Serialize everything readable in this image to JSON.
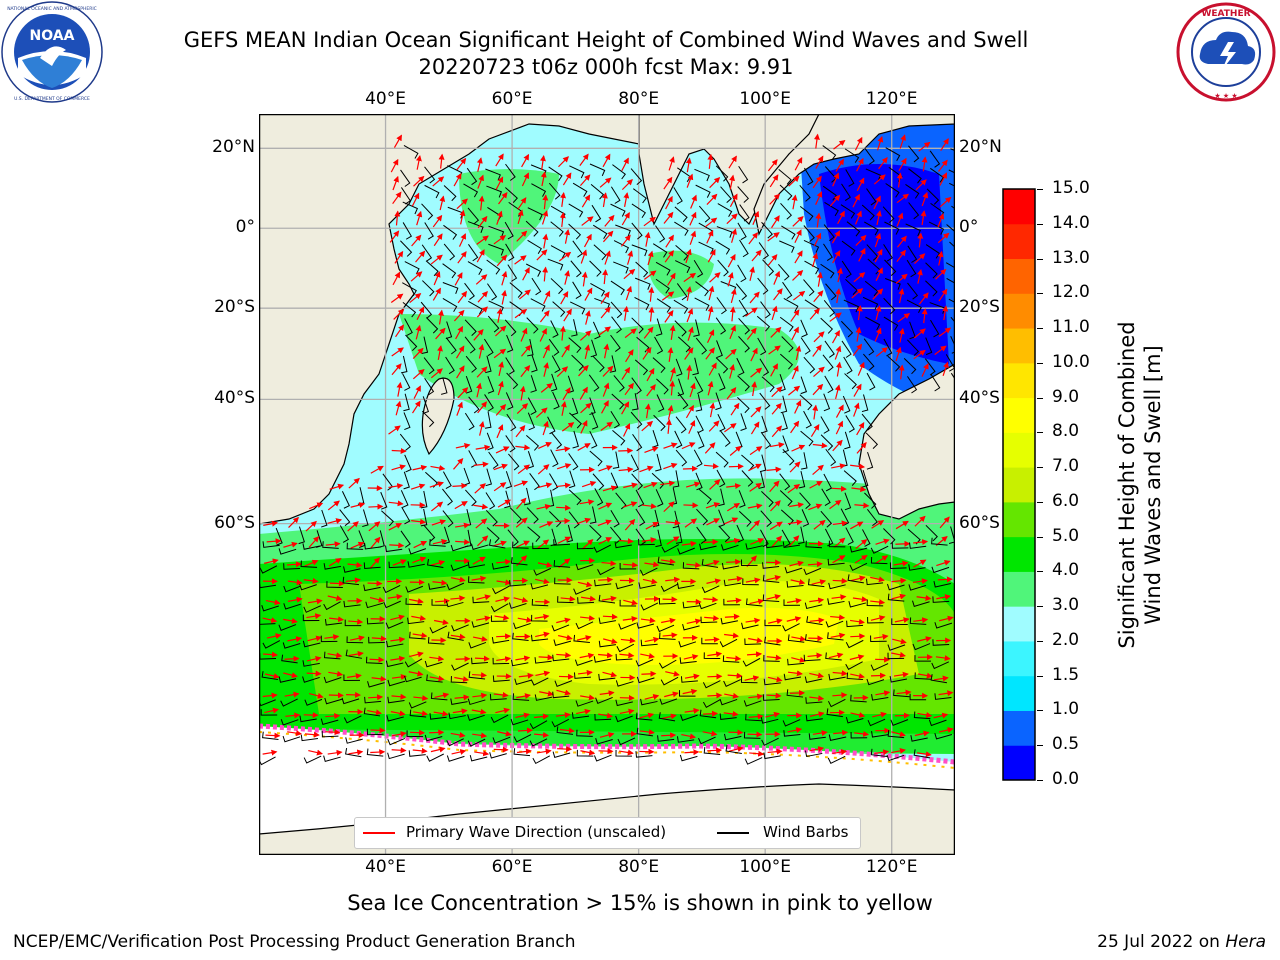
{
  "title": {
    "line1": "GEFS MEAN Indian Ocean Significant Height of Combined Wind Waves and Swell",
    "line2": "20220723 t06z 000h fcst   Max: 9.91"
  },
  "logos": {
    "left": {
      "name": "noaa-logo",
      "text": "NOAA",
      "ring_text": "NATIONAL OCEANIC AND ATMOSPHERIC ADMINISTRATION · U.S. DEPARTMENT OF COMMERCE"
    },
    "right": {
      "name": "nws-logo",
      "ring_text": "NATIONAL WEATHER SERVICE"
    }
  },
  "map": {
    "lon_ticks_top": [
      "40°E",
      "60°E",
      "80°E",
      "100°E",
      "120°E"
    ],
    "lon_ticks_bottom": [
      "40°E",
      "60°E",
      "80°E",
      "100°E",
      "120°E"
    ],
    "lat_ticks_left": [
      "20°N",
      "0°",
      "20°S",
      "40°S",
      "60°S"
    ],
    "lat_ticks_right": [
      "20°N",
      "0°",
      "20°S",
      "40°S",
      "60°S"
    ],
    "lon_values": [
      40,
      60,
      80,
      100,
      120
    ],
    "lat_values": [
      20,
      0,
      -20,
      -40,
      -60
    ],
    "extent": {
      "lon_min": 20,
      "lon_max": 130,
      "lat_min": -83,
      "lat_max": 28
    },
    "colors": {
      "land": "#efedde",
      "ice": "#ffffff",
      "wave_arrow": "#ff0000",
      "wind_barb": "#000000",
      "grid": "#b0b0b0"
    }
  },
  "colorbar": {
    "label_line1": "Significant Height of Combined",
    "label_line2": "Wind Waves and Swell [m]",
    "ticks": [
      "0.0",
      "0.5",
      "1.0",
      "1.5",
      "2.0",
      "3.0",
      "4.0",
      "5.0",
      "6.0",
      "7.0",
      "8.0",
      "9.0",
      "10.0",
      "11.0",
      "12.0",
      "13.0",
      "14.0",
      "15.0"
    ],
    "colors": [
      "#0000ff",
      "#0a64ff",
      "#00e6ff",
      "#3cf5ff",
      "#a0fcff",
      "#50f57a",
      "#00e600",
      "#64e600",
      "#c8f000",
      "#e6ff00",
      "#ffff00",
      "#ffe600",
      "#ffbe00",
      "#ff8c00",
      "#ff6400",
      "#ff2800",
      "#ff0000"
    ]
  },
  "legend": {
    "wave_label": "Primary Wave Direction (unscaled)",
    "wind_label": "Wind Barbs"
  },
  "footer": {
    "note": "Sea Ice Concentration > 15% is shown in pink to yellow",
    "credit": "NCEP/EMC/Verification Post Processing Product Generation Branch",
    "date": "25 Jul 2022 on ",
    "host": "Hera"
  }
}
